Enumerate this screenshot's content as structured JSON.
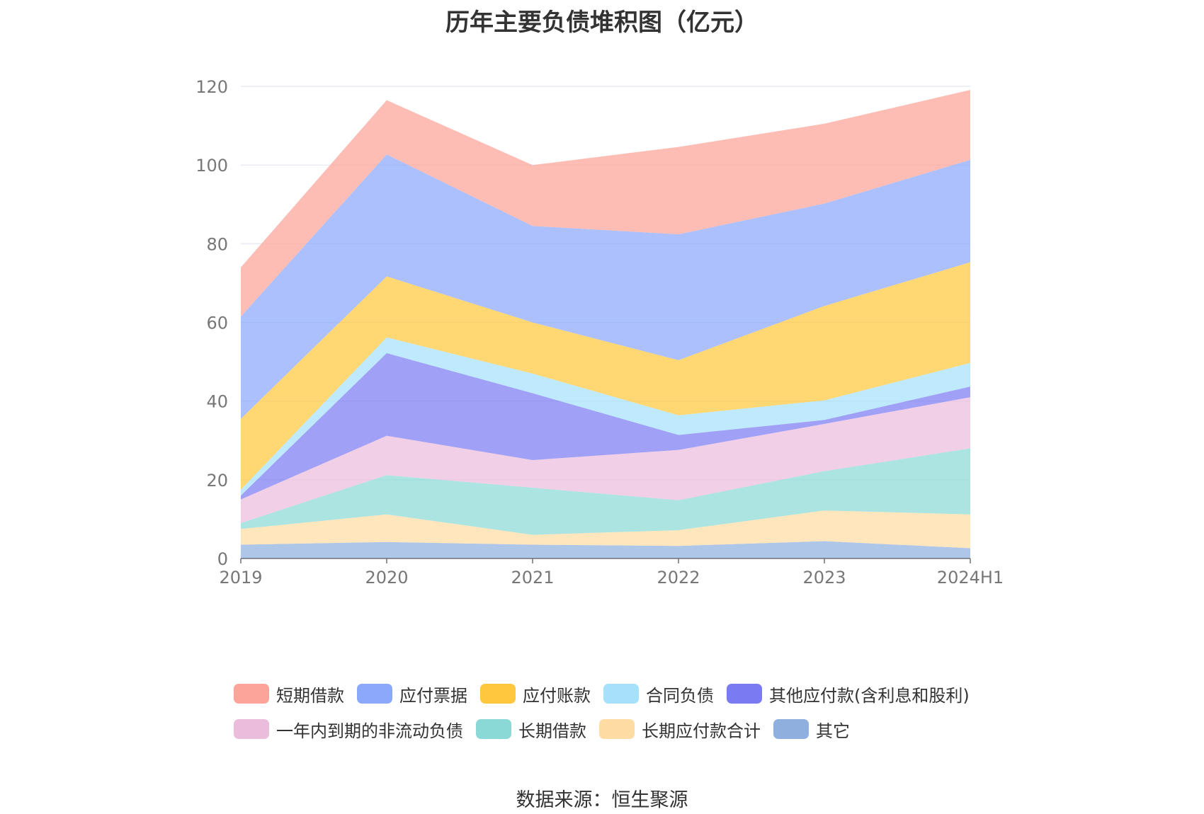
{
  "title": "历年主要负债堆积图（亿元）",
  "source": "数据来源：恒生聚源",
  "chart_data": {
    "type": "area",
    "stacked": true,
    "categories": [
      "2019",
      "2020",
      "2021",
      "2022",
      "2023",
      "2024H1"
    ],
    "ylim": [
      0,
      120
    ],
    "yticks": [
      0,
      20,
      40,
      60,
      80,
      100,
      120
    ],
    "grid": true,
    "legend_position": "bottom",
    "series": [
      {
        "name": "其它",
        "color": "#8fb0de",
        "values": [
          3.5,
          4.2,
          3.5,
          3.2,
          4.4,
          2.6
        ]
      },
      {
        "name": "长期应付款合计",
        "color": "#ffdca3",
        "values": [
          4.0,
          7.0,
          2.5,
          4.0,
          7.8,
          8.6
        ]
      },
      {
        "name": "长期借款",
        "color": "#8ad9d6",
        "values": [
          1.5,
          10.0,
          12.0,
          7.6,
          10.0,
          16.8
        ]
      },
      {
        "name": "一年内到期的非流动负债",
        "color": "#ebbcdc",
        "values": [
          6.0,
          10.0,
          7.0,
          12.8,
          12.0,
          13.0
        ]
      },
      {
        "name": "其他应付款(含利息和股利)",
        "color": "#7a7bf2",
        "values": [
          1.0,
          21.0,
          17.0,
          3.8,
          1.0,
          2.7
        ]
      },
      {
        "name": "合同负债",
        "color": "#a6e1fb",
        "values": [
          1.5,
          4.0,
          5.0,
          5.0,
          5.0,
          6.0
        ]
      },
      {
        "name": "应付账款",
        "color": "#ffc73d",
        "values": [
          18.0,
          15.5,
          13.0,
          14.0,
          24.0,
          25.6
        ]
      },
      {
        "name": "应付票据",
        "color": "#8ba8fb",
        "values": [
          26.0,
          31.0,
          24.5,
          32.0,
          26.0,
          26.0
        ]
      },
      {
        "name": "短期借款",
        "color": "#fca499",
        "values": [
          12.5,
          13.8,
          15.5,
          22.2,
          20.3,
          17.8
        ]
      }
    ]
  },
  "legend": {
    "row1": [
      {
        "name": "短期借款",
        "color": "#fca499"
      },
      {
        "name": "应付票据",
        "color": "#8ba8fb"
      },
      {
        "name": "应付账款",
        "color": "#ffc73d"
      },
      {
        "name": "合同负债",
        "color": "#a6e1fb"
      },
      {
        "name": "其他应付款(含利息和股利)",
        "color": "#7a7bf2"
      }
    ],
    "row2": [
      {
        "name": "一年内到期的非流动负债",
        "color": "#ebbcdc"
      },
      {
        "name": "长期借款",
        "color": "#8ad9d6"
      },
      {
        "name": "长期应付款合计",
        "color": "#ffdca3"
      },
      {
        "name": "其它",
        "color": "#8fb0de"
      }
    ]
  }
}
